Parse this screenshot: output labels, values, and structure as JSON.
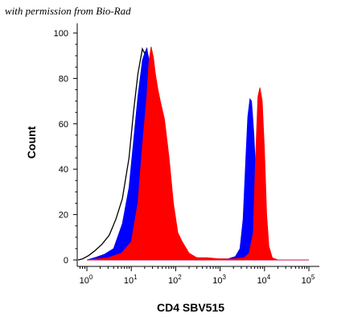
{
  "permission_note": "with permission from Bio-Rad",
  "chart_data": {
    "type": "area",
    "xscale": "log",
    "xlim": [
      1,
      100000
    ],
    "ylim": [
      0,
      100
    ],
    "xlabel": "CD4 SBV515",
    "ylabel": "Count",
    "grid": false,
    "legend": "none",
    "x_ticks": [
      {
        "base": "10",
        "exp": "0",
        "value": 1
      },
      {
        "base": "10",
        "exp": "1",
        "value": 10
      },
      {
        "base": "10",
        "exp": "2",
        "value": 100
      },
      {
        "base": "10",
        "exp": "3",
        "value": 1000
      },
      {
        "base": "10",
        "exp": "4",
        "value": 10000
      },
      {
        "base": "10",
        "exp": "5",
        "value": 100000
      }
    ],
    "y_ticks": [
      0,
      20,
      40,
      60,
      80,
      100
    ],
    "series": [
      {
        "color": "#000000",
        "style": "line",
        "points": [
          [
            0.5,
            0
          ],
          [
            0.8,
            0.5
          ],
          [
            1.1,
            2
          ],
          [
            1.5,
            4
          ],
          [
            2.2,
            7
          ],
          [
            3.2,
            11
          ],
          [
            4.5,
            18
          ],
          [
            6.3,
            27
          ],
          [
            8.9,
            45
          ],
          [
            11.2,
            65
          ],
          [
            14.1,
            82
          ],
          [
            17.8,
            93
          ],
          [
            20,
            91
          ],
          [
            22.4,
            93
          ],
          [
            25.1,
            85
          ],
          [
            28,
            65
          ],
          [
            31.6,
            38
          ],
          [
            40,
            12
          ],
          [
            56,
            3
          ],
          [
            100,
            1
          ],
          [
            300,
            0
          ]
        ]
      },
      {
        "color": "#0000ff",
        "style": "fill",
        "points": [
          [
            1,
            0
          ],
          [
            1.6,
            1.2
          ],
          [
            2.5,
            2.5
          ],
          [
            4,
            5
          ],
          [
            6.3,
            16
          ],
          [
            8.9,
            32
          ],
          [
            11.2,
            52
          ],
          [
            14.1,
            72
          ],
          [
            17.8,
            88
          ],
          [
            20,
            91
          ],
          [
            22.4,
            93
          ],
          [
            25.1,
            88
          ],
          [
            31.6,
            60
          ],
          [
            40,
            30
          ],
          [
            56,
            10
          ],
          [
            79,
            4
          ],
          [
            120,
            2
          ],
          [
            200,
            1.5
          ],
          [
            300,
            1
          ],
          [
            700,
            0.5
          ],
          [
            1500,
            0.5
          ],
          [
            2200,
            1.5
          ],
          [
            2800,
            5
          ],
          [
            3300,
            18
          ],
          [
            3800,
            45
          ],
          [
            4200,
            63
          ],
          [
            4700,
            71
          ],
          [
            5100,
            70
          ],
          [
            5800,
            55
          ],
          [
            7000,
            20
          ],
          [
            8500,
            5
          ],
          [
            12000,
            1
          ],
          [
            20000,
            0
          ],
          [
            100000,
            0
          ]
        ]
      },
      {
        "color": "#ff0000",
        "style": "fill",
        "points": [
          [
            1,
            0
          ],
          [
            3,
            1
          ],
          [
            6,
            3
          ],
          [
            10,
            8
          ],
          [
            14.1,
            25
          ],
          [
            17.8,
            50
          ],
          [
            22.4,
            72
          ],
          [
            25.1,
            88
          ],
          [
            28,
            94
          ],
          [
            31.6,
            89
          ],
          [
            35,
            82
          ],
          [
            40,
            75
          ],
          [
            45,
            70
          ],
          [
            56,
            62
          ],
          [
            71,
            45
          ],
          [
            89,
            25
          ],
          [
            112,
            12
          ],
          [
            141,
            8
          ],
          [
            200,
            3
          ],
          [
            300,
            1
          ],
          [
            500,
            1
          ],
          [
            1000,
            0.5
          ],
          [
            2000,
            0.5
          ],
          [
            3500,
            1
          ],
          [
            4500,
            3
          ],
          [
            5600,
            12
          ],
          [
            6300,
            45
          ],
          [
            7100,
            72
          ],
          [
            7900,
            76
          ],
          [
            8900,
            70
          ],
          [
            10000,
            48
          ],
          [
            11200,
            20
          ],
          [
            12600,
            6
          ],
          [
            15000,
            1
          ],
          [
            20000,
            0
          ],
          [
            100000,
            0
          ]
        ]
      }
    ]
  }
}
